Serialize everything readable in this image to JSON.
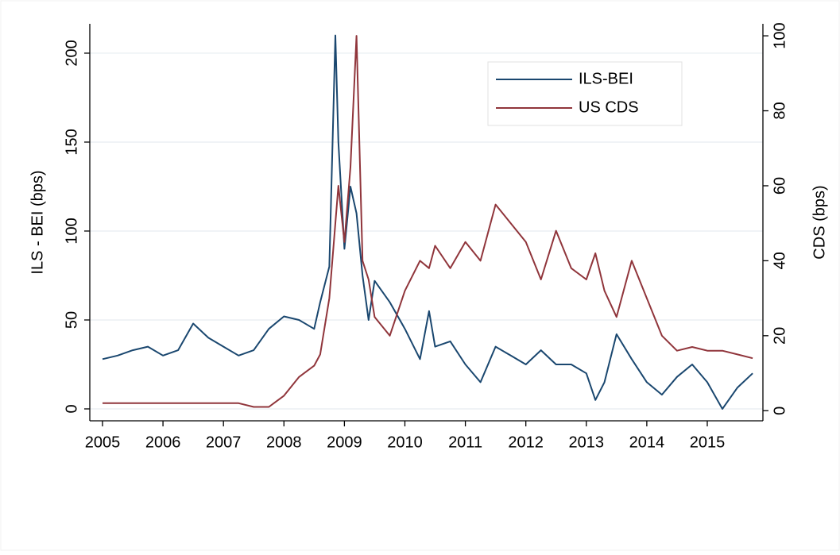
{
  "chart_data": {
    "type": "line",
    "x": [
      2005.0,
      2005.25,
      2005.5,
      2005.75,
      2006.0,
      2006.25,
      2006.5,
      2006.75,
      2007.0,
      2007.25,
      2007.5,
      2007.75,
      2008.0,
      2008.25,
      2008.5,
      2008.6,
      2008.75,
      2008.85,
      2008.9,
      2009.0,
      2009.1,
      2009.2,
      2009.3,
      2009.4,
      2009.5,
      2009.75,
      2010.0,
      2010.25,
      2010.4,
      2010.5,
      2010.75,
      2011.0,
      2011.25,
      2011.5,
      2011.75,
      2012.0,
      2012.25,
      2012.5,
      2012.75,
      2013.0,
      2013.15,
      2013.3,
      2013.5,
      2013.75,
      2014.0,
      2014.25,
      2014.5,
      2014.75,
      2015.0,
      2015.25,
      2015.5,
      2015.75
    ],
    "series": [
      {
        "name": "ILS-BEI",
        "color": "#1a476f",
        "axis": "y",
        "values": [
          28,
          30,
          33,
          35,
          30,
          33,
          48,
          40,
          35,
          30,
          33,
          45,
          52,
          50,
          45,
          60,
          80,
          210,
          150,
          90,
          125,
          110,
          75,
          50,
          72,
          60,
          45,
          28,
          55,
          35,
          38,
          25,
          15,
          35,
          30,
          25,
          33,
          25,
          25,
          20,
          5,
          15,
          42,
          28,
          15,
          8,
          18,
          25,
          15,
          0,
          12,
          20
        ]
      },
      {
        "name": "US CDS",
        "color": "#90353b",
        "axis": "y2",
        "values": [
          2,
          2,
          2,
          2,
          2,
          2,
          2,
          2,
          2,
          2,
          1,
          1,
          4,
          9,
          12,
          15,
          30,
          50,
          60,
          45,
          65,
          100,
          40,
          35,
          25,
          20,
          32,
          40,
          38,
          44,
          38,
          45,
          40,
          55,
          50,
          45,
          35,
          48,
          38,
          35,
          42,
          32,
          25,
          40,
          30,
          20,
          16,
          17,
          16,
          16,
          15,
          14
        ]
      }
    ],
    "y_label": "ILS - BEI (bps)",
    "y2_label": "CDS (bps)",
    "xlim": [
      2004.79,
      2015.92
    ],
    "xticks": [
      2005,
      2006,
      2007,
      2008,
      2009,
      2010,
      2011,
      2012,
      2013,
      2014,
      2015
    ],
    "ylim": [
      -6.7,
      216.5
    ],
    "yticks": [
      0,
      50,
      100,
      150,
      200
    ],
    "y2lim": [
      -2.7,
      103.2
    ],
    "y2ticks": [
      0,
      20,
      40,
      60,
      80,
      100
    ],
    "grid": true,
    "legend": "top-right"
  }
}
